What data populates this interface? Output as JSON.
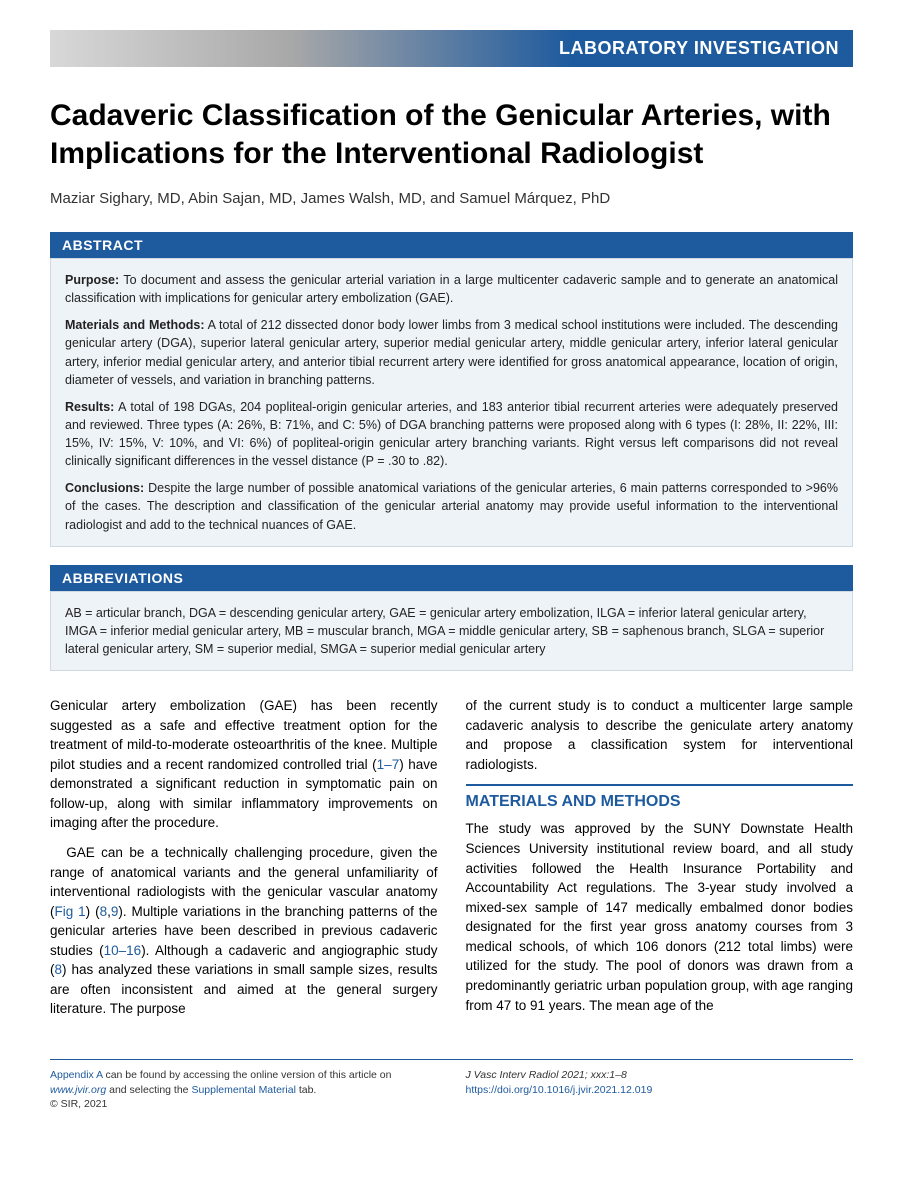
{
  "category": "LABORATORY INVESTIGATION",
  "title": "Cadaveric Classification of the Genicular Arteries, with Implications for the Interventional Radiologist",
  "authors": "Maziar Sighary, MD, Abin Sajan, MD, James Walsh, MD, and Samuel Márquez, PhD",
  "abstract_header": "ABSTRACT",
  "abstract": {
    "purpose_label": "Purpose:",
    "purpose_text": " To document and assess the genicular arterial variation in a large multicenter cadaveric sample and to generate an anatomical classification with implications for genicular artery embolization (GAE).",
    "methods_label": "Materials and Methods:",
    "methods_text": " A total of 212 dissected donor body lower limbs from 3 medical school institutions were included. The descending genicular artery (DGA), superior lateral genicular artery, superior medial genicular artery, middle genicular artery, inferior lateral genicular artery, inferior medial genicular artery, and anterior tibial recurrent artery were identified for gross anatomical appearance, location of origin, diameter of vessels, and variation in branching patterns.",
    "results_label": "Results:",
    "results_text": " A total of 198 DGAs, 204 popliteal-origin genicular arteries, and 183 anterior tibial recurrent arteries were adequately preserved and reviewed. Three types (A: 26%, B: 71%, and C: 5%) of DGA branching patterns were proposed along with 6 types (I: 28%, II: 22%, III: 15%, IV: 15%, V: 10%, and VI: 6%) of popliteal-origin genicular artery branching variants. Right versus left comparisons did not reveal clinically significant differences in the vessel distance (P = .30 to .82).",
    "conclusions_label": "Conclusions:",
    "conclusions_text": " Despite the large number of possible anatomical variations of the genicular arteries, 6 main patterns corresponded to >96% of the cases. The description and classification of the genicular arterial anatomy may provide useful information to the interventional radiologist and add to the technical nuances of GAE."
  },
  "abbrev_header": "ABBREVIATIONS",
  "abbrev_text": "AB = articular branch, DGA = descending genicular artery, GAE = genicular artery embolization, ILGA = inferior lateral genicular artery, IMGA = inferior medial genicular artery, MB = muscular branch, MGA = middle genicular artery, SB = saphenous branch, SLGA = superior lateral genicular artery, SM = superior medial, SMGA = superior medial genicular artery",
  "body": {
    "col1_p1a": "Genicular artery embolization (GAE) has been recently suggested as a safe and effective treatment option for the treatment of mild-to-moderate osteoarthritis of the knee. Multiple pilot studies and a recent randomized controlled trial (",
    "col1_p1_ref1": "1–7",
    "col1_p1b": ") have demonstrated a significant reduction in symptomatic pain on follow-up, along with similar inflammatory improvements on imaging after the procedure.",
    "col1_p2a": "GAE can be a technically challenging procedure, given the range of anatomical variants and the general unfamiliarity of interventional radiologists with the genicular vascular anatomy (",
    "col1_p2_fig": "Fig 1",
    "col1_p2b": ") (",
    "col1_p2_ref1": "8",
    "col1_p2c": ",",
    "col1_p2_ref2": "9",
    "col1_p2d": "). Multiple variations in the branching patterns of the genicular arteries have been described in previous cadaveric studies (",
    "col1_p2_ref3": "10–16",
    "col1_p2e": "). Although a cadaveric and angiographic study (",
    "col1_p2_ref4": "8",
    "col1_p2f": ") has analyzed these variations in small sample sizes, results are often inconsistent and aimed at the general surgery literature. The purpose",
    "col2_p1": "of the current study is to conduct a multicenter large sample cadaveric analysis to describe the geniculate artery anatomy and propose a classification system for interventional radiologists.",
    "methods_heading": "MATERIALS AND METHODS",
    "col2_p2": "The study was approved by the SUNY Downstate Health Sciences University institutional review board, and all study activities followed the Health Insurance Portability and Accountability Act regulations. The 3-year study involved a mixed-sex sample of 147 medically embalmed donor bodies designated for the first year gross anatomy courses from 3 medical schools, of which 106 donors (212 total limbs) were utilized for the study. The pool of donors was drawn from a predominantly geriatric urban population group, with age ranging from 47 to 91 years. The mean age of the"
  },
  "footer": {
    "left_a": "Appendix A",
    "left_b": " can be found by accessing the online version of this article on ",
    "left_link": "www.jvir.org",
    "left_c": " and selecting the ",
    "left_link2": "Supplemental Material",
    "left_d": " tab.",
    "copyright": "© SIR, 2021",
    "right_journal": "J Vasc Interv Radiol 2021; xxx:1–8",
    "right_doi": "https://doi.org/10.1016/j.jvir.2021.12.019"
  }
}
